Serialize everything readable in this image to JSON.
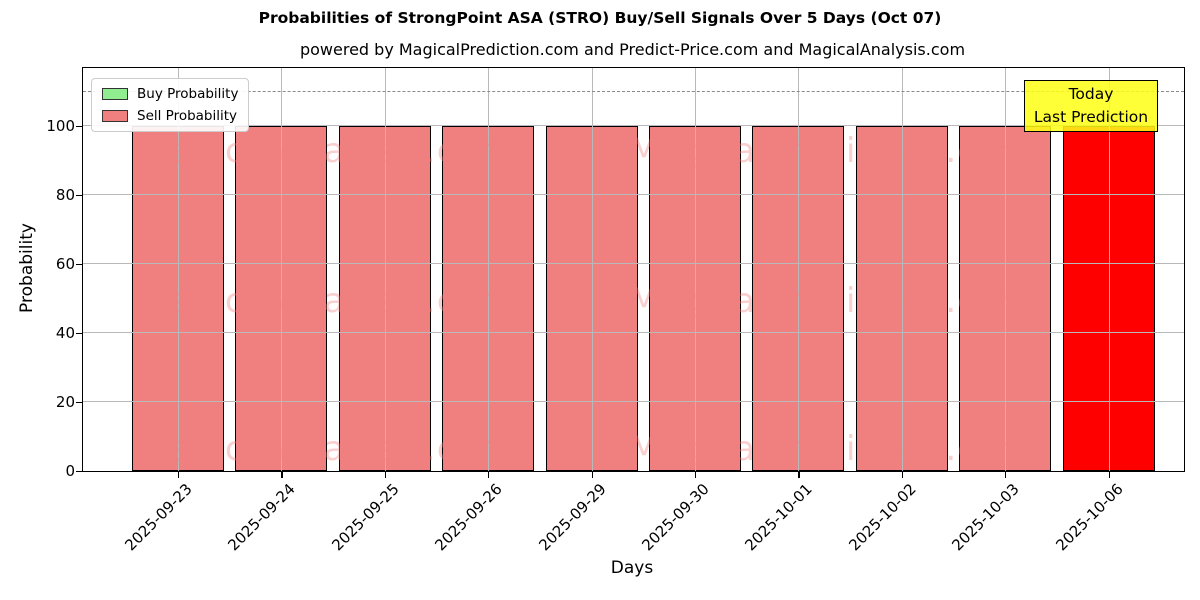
{
  "chart_data": {
    "type": "bar",
    "title": "Probabilities of StrongPoint ASA (STRO) Buy/Sell Signals Over 5 Days (Oct 07)",
    "subtitle": "powered by MagicalPrediction.com and Predict-Price.com and MagicalAnalysis.com",
    "xlabel": "Days",
    "ylabel": "Probability",
    "categories": [
      "2025-09-23",
      "2025-09-24",
      "2025-09-25",
      "2025-09-26",
      "2025-09-29",
      "2025-09-30",
      "2025-10-01",
      "2025-10-02",
      "2025-10-03",
      "2025-10-06"
    ],
    "series": [
      {
        "name": "Buy Probability",
        "color": "#90ee90",
        "values": [
          0,
          0,
          0,
          0,
          0,
          0,
          0,
          0,
          0,
          0
        ]
      },
      {
        "name": "Sell Probability",
        "color": "#f08080",
        "values": [
          100,
          100,
          100,
          100,
          100,
          100,
          100,
          100,
          100,
          100
        ]
      }
    ],
    "highlight_bar": {
      "index": 9,
      "color": "#ff0000",
      "meaning": "Today / Last Prediction"
    },
    "bar_edge_color": "#000000",
    "yticks": [
      0,
      20,
      40,
      60,
      80,
      100
    ],
    "ylim": [
      0,
      116.8
    ],
    "dashed_line_y": 110,
    "grid": true,
    "legend_position": "upper left"
  },
  "legend": {
    "items": [
      {
        "label": "Buy Probability",
        "color": "#90ee90"
      },
      {
        "label": "Sell Probability",
        "color": "#f08080"
      }
    ]
  },
  "annotation": {
    "line1": "Today",
    "line2": "Last Prediction",
    "bg_color": "#ffff00"
  },
  "watermarks": {
    "left_text": "MagicalAnalysis.com",
    "right_text": "MagicalPrediction.com"
  }
}
